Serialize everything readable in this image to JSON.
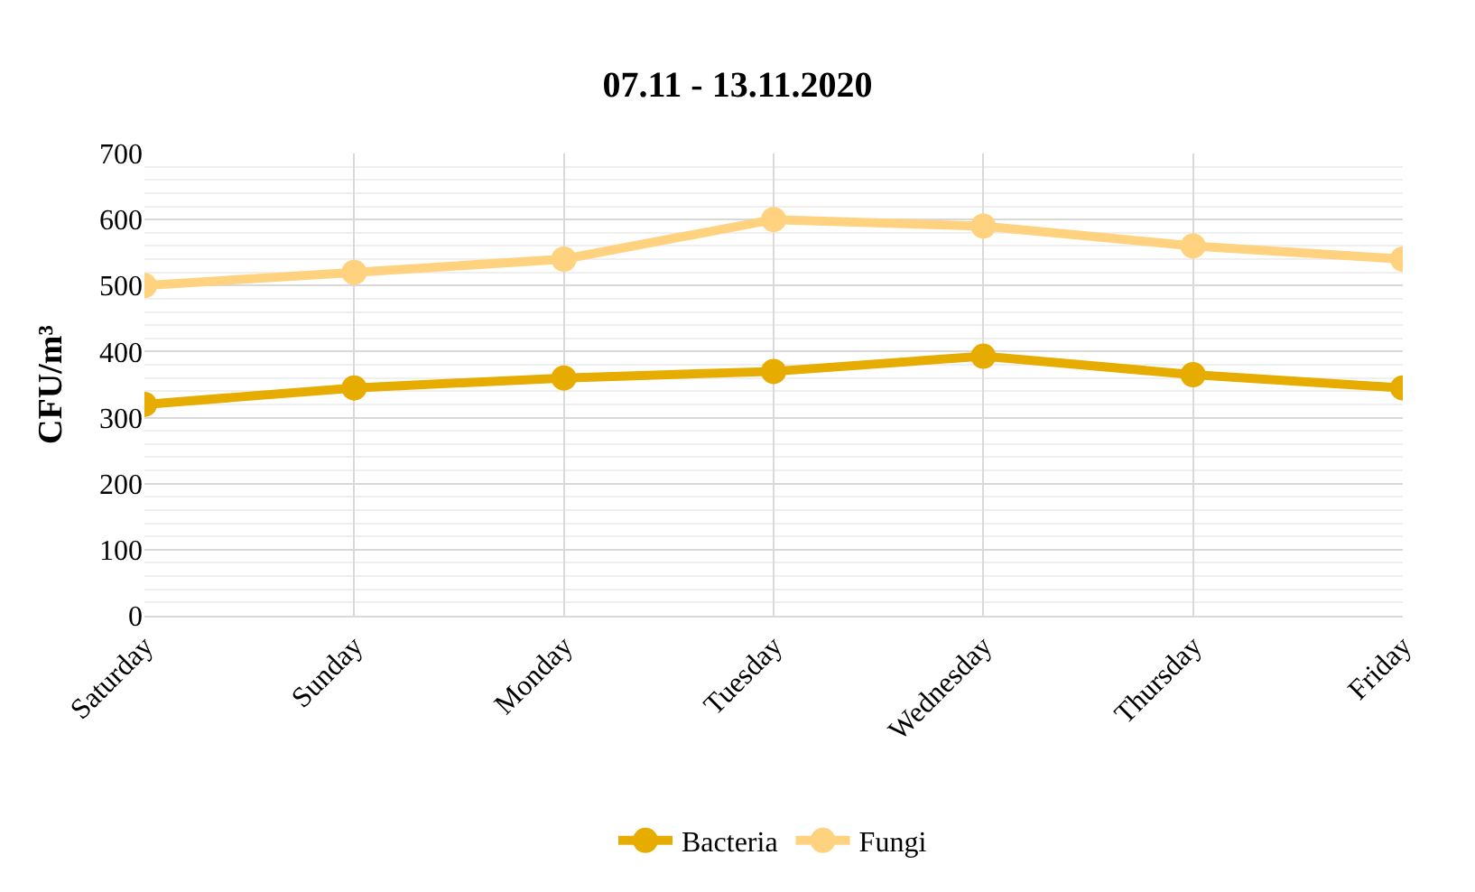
{
  "chart_data": {
    "type": "line",
    "title": "07.11 - 13.11.2020",
    "ylabel": "CFU/m³",
    "categories": [
      "Saturday",
      "Sunday",
      "Monday",
      "Tuesday",
      "Wednesday",
      "Thursday",
      "Friday"
    ],
    "series": [
      {
        "name": "Bacteria",
        "color": "#e6ac00",
        "values": [
          320,
          345,
          360,
          370,
          393,
          365,
          345
        ]
      },
      {
        "name": "Fungi",
        "color": "#ffd280",
        "values": [
          500,
          520,
          540,
          600,
          590,
          560,
          540
        ]
      }
    ],
    "ylim": [
      0,
      700
    ],
    "yticks": [
      0,
      100,
      200,
      300,
      400,
      500,
      600,
      700
    ],
    "grid": true,
    "legend": "bottom",
    "marker": "circle",
    "line_style": "solid"
  }
}
